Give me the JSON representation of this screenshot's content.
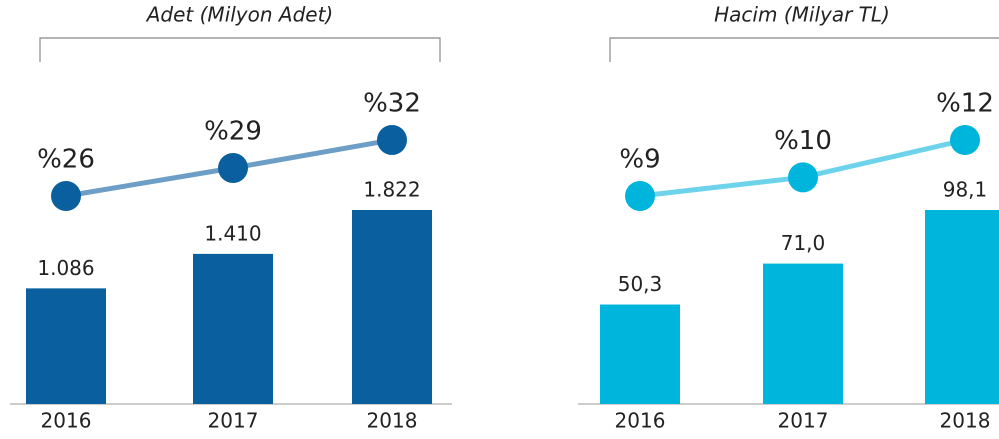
{
  "chart_data": [
    {
      "type": "combo",
      "title": "Adet (Milyon Adet)",
      "categories": [
        "2016",
        "2017",
        "2018"
      ],
      "series": [
        {
          "type": "bar",
          "color": "#0a5f9e",
          "values": [
            1086,
            1410,
            1822
          ],
          "value_labels": [
            "1.086",
            "1.410",
            "1.822"
          ]
        },
        {
          "type": "line",
          "color": "#6d9fc6",
          "marker_color": "#0a5f9e",
          "values": [
            26,
            29,
            32
          ],
          "value_labels": [
            "%26",
            "%29",
            "%32"
          ]
        }
      ]
    },
    {
      "type": "combo",
      "title": "Hacim (Milyar TL)",
      "categories": [
        "2016",
        "2017",
        "2018"
      ],
      "series": [
        {
          "type": "bar",
          "color": "#00b5dc",
          "values": [
            50.3,
            71.0,
            98.1
          ],
          "value_labels": [
            "50,3",
            "71,0",
            "98,1"
          ]
        },
        {
          "type": "line",
          "color": "#6dd3ea",
          "marker_color": "#00b5dc",
          "values": [
            9,
            10,
            12
          ],
          "value_labels": [
            "%9",
            "%10",
            "%12"
          ]
        }
      ]
    }
  ]
}
